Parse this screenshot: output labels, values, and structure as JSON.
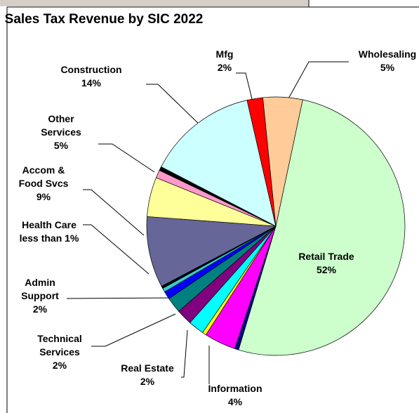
{
  "chart_data": {
    "type": "pie",
    "title": "Sales Tax Revenue by SIC 2022",
    "categories": [
      "Retail Trade",
      null,
      "Information",
      null,
      "Real Estate",
      "Technical Services",
      "Admin Support",
      null,
      "Health Care",
      null,
      "Accom & Food Svcs",
      "Other Services",
      null,
      null,
      "Construction",
      "Mfg",
      "Wholesaling"
    ],
    "values": [
      52,
      0.5,
      4,
      0.5,
      2,
      2,
      2,
      1,
      0.5,
      0.3,
      9,
      5,
      1,
      0.5,
      14,
      2,
      5
    ],
    "value_labels": [
      "52%",
      null,
      "4%",
      null,
      "2%",
      "2%",
      "2%",
      null,
      "less than 1%",
      null,
      "9%",
      "5%",
      null,
      null,
      "14%",
      "2%",
      "5%"
    ],
    "colors": [
      "#ccffcc",
      "#000080",
      "#ff00ff",
      "#ffff00",
      "#00ffff",
      "#800080",
      "#008080",
      "#0000ff",
      "#33cccc",
      "#000000",
      "#666699",
      "#ffff99",
      "#ff99cc",
      "#000000",
      "#ccffff",
      "#ff0000",
      "#ffcc99"
    ]
  }
}
